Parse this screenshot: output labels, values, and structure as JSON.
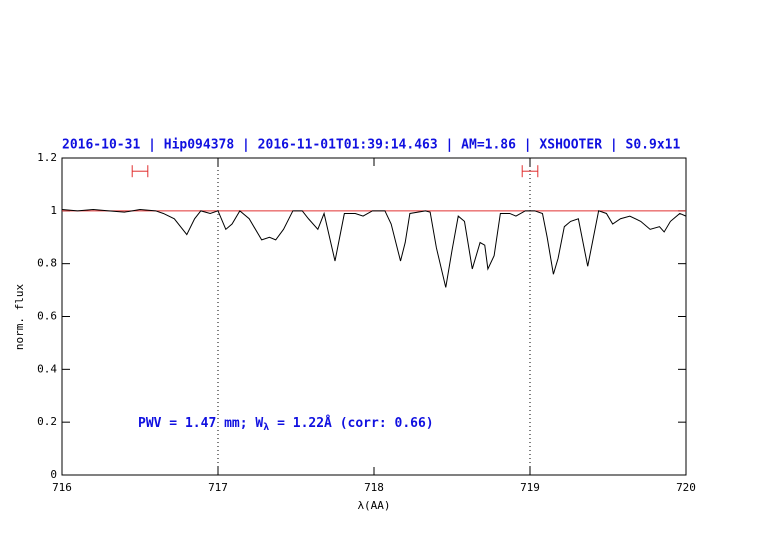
{
  "chart_data": {
    "type": "line",
    "title": "2016-10-31 | Hip094378 | 2016-11-01T01:39:14.463 | AM=1.86 | XSHOOTER | S0.9x11",
    "annotation_parts": [
      "PWV = 1.47 mm; W",
      "λ",
      " = 1.22Å (corr: 0.66)"
    ],
    "xlabel": "λ(AA)",
    "ylabel": "norm. flux",
    "xlim": [
      716,
      720
    ],
    "xticks": [
      716,
      717,
      718,
      719,
      720
    ],
    "ylim": [
      0,
      1.2
    ],
    "yticks": [
      0,
      0.2,
      0.4,
      0.6,
      0.8,
      1,
      1.2
    ],
    "reference_line": {
      "y": 1,
      "color": "#e03030"
    },
    "dotted_vlines": [
      717,
      719
    ],
    "intervals": {
      "y": 1.15,
      "color": "#e03030",
      "ranges": [
        [
          716.45,
          716.55
        ],
        [
          718.95,
          719.05
        ]
      ]
    },
    "series": [
      {
        "color": "#000000",
        "x": [
          716,
          716.1,
          716.2,
          716.3,
          716.4,
          716.45,
          716.5,
          716.6,
          716.65,
          716.72,
          716.8,
          716.85,
          716.89,
          716.95,
          717.0,
          717.05,
          717.09,
          717.14,
          717.2,
          717.28,
          717.33,
          717.37,
          717.42,
          717.48,
          717.54,
          717.58,
          717.64,
          717.68,
          717.75,
          717.78,
          717.81,
          717.88,
          717.93,
          717.99,
          718.07,
          718.11,
          718.17,
          718.2,
          718.23,
          718.33,
          718.36,
          718.4,
          718.46,
          718.5,
          718.54,
          718.58,
          718.63,
          718.68,
          718.71,
          718.73,
          718.77,
          718.81,
          718.87,
          718.91,
          718.97,
          719.03,
          719.08,
          719.11,
          719.15,
          719.18,
          719.22,
          719.26,
          719.31,
          719.37,
          719.4,
          719.44,
          719.49,
          719.53,
          719.58,
          719.64,
          719.71,
          719.77,
          719.83,
          719.86,
          719.9,
          719.96,
          720
        ],
        "values": [
          1.005,
          1.0,
          1.005,
          1.0,
          0.995,
          1.0,
          1.005,
          1.0,
          0.99,
          0.97,
          0.91,
          0.97,
          1.0,
          0.99,
          1.0,
          0.93,
          0.95,
          1.0,
          0.97,
          0.89,
          0.9,
          0.89,
          0.93,
          1.0,
          1.0,
          0.97,
          0.93,
          0.99,
          0.81,
          0.9,
          0.99,
          0.99,
          0.98,
          1.0,
          1.0,
          0.95,
          0.81,
          0.88,
          0.99,
          1.0,
          0.995,
          0.86,
          0.71,
          0.85,
          0.98,
          0.96,
          0.78,
          0.88,
          0.87,
          0.78,
          0.83,
          0.99,
          0.99,
          0.98,
          1.0,
          1.0,
          0.99,
          0.9,
          0.76,
          0.82,
          0.94,
          0.96,
          0.97,
          0.79,
          0.88,
          1.0,
          0.99,
          0.95,
          0.97,
          0.98,
          0.96,
          0.93,
          0.94,
          0.92,
          0.96,
          0.99,
          0.98
        ]
      }
    ]
  }
}
